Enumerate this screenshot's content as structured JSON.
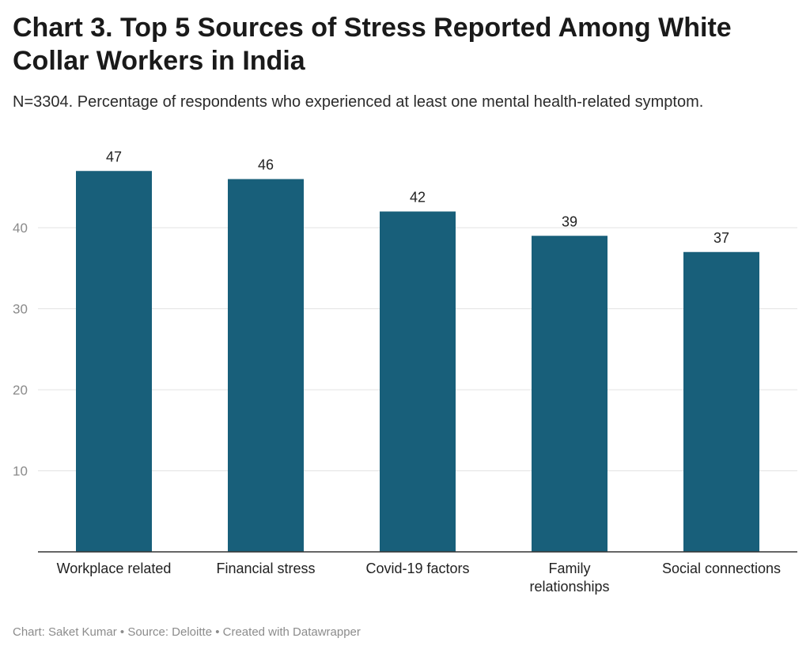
{
  "title": "Chart 3. Top 5 Sources of Stress Reported Among White Collar Workers in India",
  "subtitle": "N=3304. Percentage of respondents who experienced at least one mental health-related symptom.",
  "colors": {
    "bar": "#185f7a",
    "grid": "#e3e3e3",
    "axis": "#333333",
    "tick": "#8a8a8a"
  },
  "chart_data": {
    "type": "bar",
    "categories": [
      [
        "Workplace related"
      ],
      [
        "Financial stress"
      ],
      [
        "Covid-19 factors"
      ],
      [
        "Family",
        "relationships"
      ],
      [
        "Social connections"
      ]
    ],
    "values": [
      47,
      46,
      42,
      39,
      37
    ],
    "yticks": [
      10,
      20,
      30,
      40
    ],
    "ylim": [
      0,
      50
    ],
    "grid": true,
    "legend": "none"
  },
  "footer": {
    "chart_credit": "Chart: Saket Kumar",
    "source": "Source: Deloitte",
    "created_with": "Created with Datawrapper",
    "separator": " • "
  }
}
